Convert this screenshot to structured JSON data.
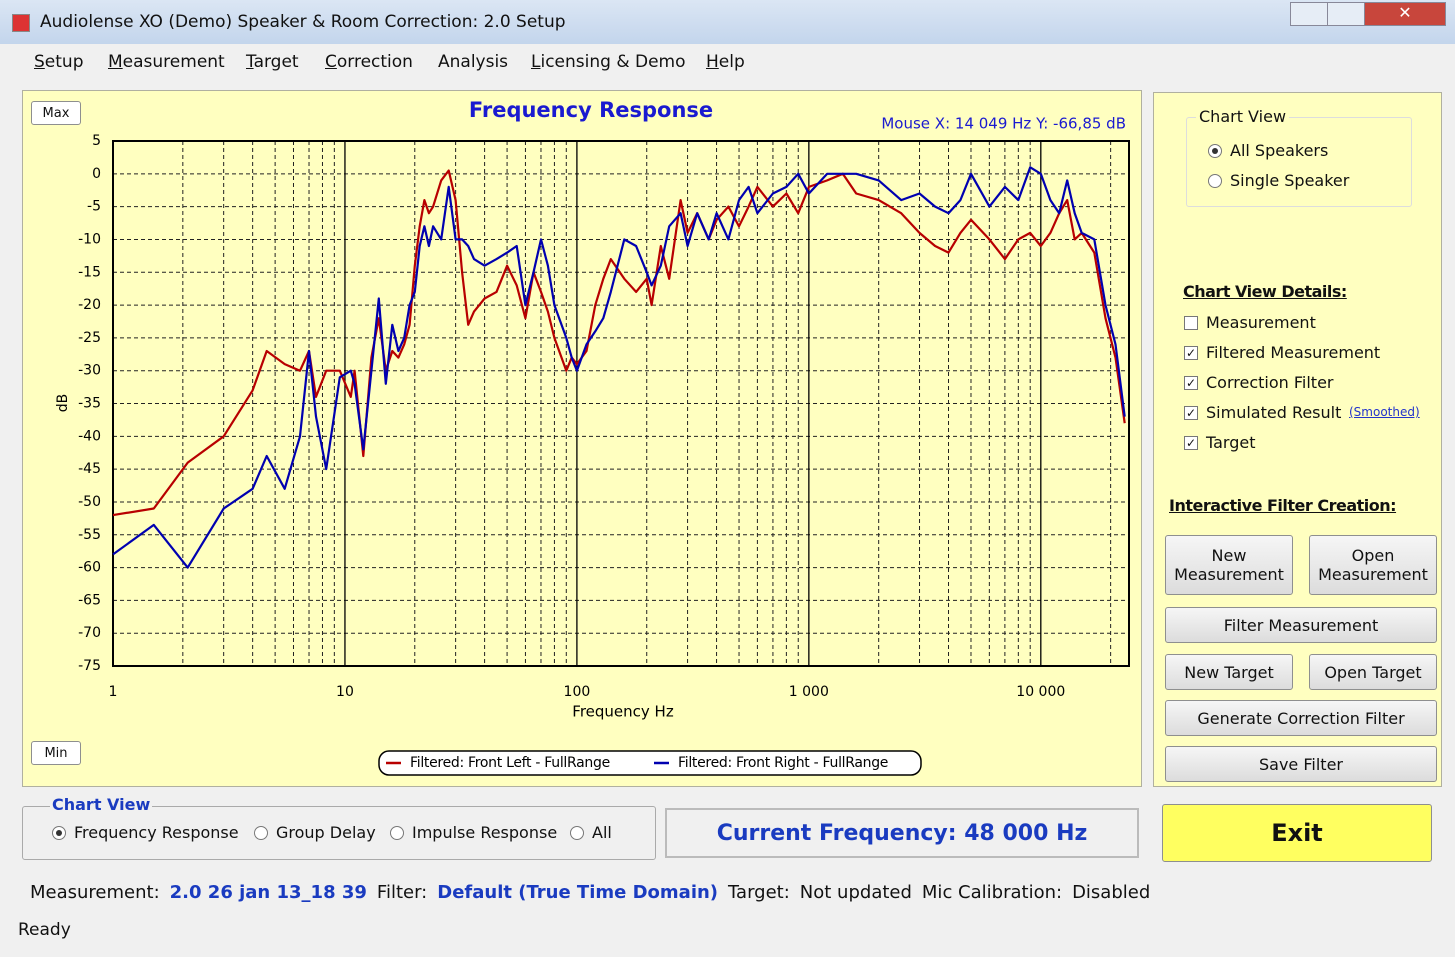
{
  "window": {
    "title": "Audiolense XO (Demo) Speaker & Room Correction: 2.0 Setup"
  },
  "menu": [
    "Setup",
    "Measurement",
    "Target",
    "Correction",
    "Analysis",
    "Licensing & Demo",
    "Help"
  ],
  "chart_buttons": {
    "max": "Max",
    "min": "Min"
  },
  "chart_data": {
    "type": "line",
    "title": "Frequency Response",
    "annotation": "Mouse X: 14 049 Hz  Y: -66,85 dB",
    "xlabel": "Frequency Hz",
    "ylabel": "dB",
    "xscale": "log",
    "grid": true,
    "legend": "bottom",
    "xlim": [
      1,
      24000
    ],
    "ylim": [
      -75,
      5
    ],
    "xticks": [
      1,
      10,
      100,
      {
        "value": 1000,
        "label": "1 000"
      },
      {
        "value": 10000,
        "label": "10 000"
      }
    ],
    "yticks": [
      5,
      0,
      -5,
      -10,
      -15,
      -20,
      -25,
      -30,
      -35,
      -40,
      -45,
      -50,
      -55,
      -60,
      -65,
      -70,
      -75
    ],
    "x": [
      1,
      1.5,
      2.1,
      3,
      4,
      4.6,
      5.5,
      6.4,
      7,
      7.5,
      8.3,
      9.5,
      10.6,
      11,
      12,
      13,
      14,
      15,
      16,
      17,
      18,
      19,
      20,
      21,
      22,
      23,
      24,
      26,
      28,
      30,
      32,
      34,
      36,
      40,
      45,
      50,
      55,
      60,
      65,
      70,
      75,
      80,
      90,
      95,
      100,
      110,
      120,
      130,
      140,
      160,
      180,
      200,
      210,
      230,
      250,
      280,
      300,
      330,
      370,
      400,
      450,
      500,
      550,
      600,
      700,
      800,
      900,
      1000,
      1200,
      1400,
      1600,
      2000,
      2500,
      3000,
      3500,
      4000,
      4500,
      5000,
      6000,
      7000,
      8000,
      9000,
      10000,
      11000,
      12000,
      13000,
      14000,
      15000,
      17000,
      19000,
      21000,
      23000
    ],
    "series": [
      {
        "name": "Filtered: Front Left - FullRange",
        "color": "#b80000",
        "values": [
          -52,
          -51,
          -44,
          -40,
          -33,
          -27,
          -29,
          -30,
          -27,
          -34,
          -30,
          -30,
          -34,
          -30,
          -43,
          -28,
          -22,
          -30,
          -27,
          -28,
          -26,
          -23,
          -14,
          -8,
          -4,
          -6,
          -5,
          -1,
          0.5,
          -4,
          -15,
          -23,
          -21,
          -19,
          -18,
          -14,
          -17,
          -22,
          -15,
          -18,
          -21,
          -25,
          -30,
          -28,
          -29,
          -27,
          -20,
          -16,
          -13,
          -16,
          -18,
          -16,
          -20,
          -11,
          -16,
          -4,
          -9,
          -6,
          -10,
          -7,
          -5,
          -8,
          -5,
          -2,
          -5,
          -3,
          -6,
          -2,
          -1,
          0,
          -3,
          -4,
          -6,
          -9,
          -11,
          -12,
          -9,
          -7,
          -10,
          -13,
          -10,
          -9,
          -11,
          -9,
          -6,
          -4,
          -10,
          -9,
          -12,
          -22,
          -28,
          -38
        ]
      },
      {
        "name": "Filtered: Front Right - FullRange",
        "color": "#0000b0",
        "values": [
          -58,
          -53.5,
          -60,
          -51,
          -48,
          -43,
          -48,
          -40,
          -27,
          -37,
          -45,
          -31,
          -30,
          -32,
          -42,
          -30,
          -19,
          -32,
          -23,
          -27,
          -25,
          -20,
          -18,
          -11,
          -8,
          -11,
          -8,
          -10,
          -2,
          -10,
          -10,
          -11,
          -13,
          -14,
          -13,
          -12,
          -11,
          -20,
          -15,
          -10,
          -14,
          -20,
          -25,
          -28,
          -30,
          -26,
          -24,
          -22,
          -18,
          -10,
          -11,
          -15,
          -17,
          -14,
          -8,
          -6,
          -11,
          -6,
          -10,
          -6,
          -10,
          -4,
          -2,
          -6,
          -3,
          -2,
          0,
          -3,
          0,
          0,
          0,
          -1,
          -4,
          -3,
          -5,
          -6,
          -4,
          0,
          -5,
          -2,
          -4,
          1,
          0,
          -4,
          -6,
          -1,
          -6,
          -9,
          -10,
          -20,
          -26,
          -37
        ]
      }
    ]
  },
  "side_panel": {
    "chart_view": {
      "title": "Chart View",
      "options": [
        "All Speakers",
        "Single Speaker"
      ]
    },
    "details": {
      "title": "Chart View Details:",
      "options": [
        "Measurement",
        "Filtered Measurement",
        "Correction Filter",
        "Simulated Result",
        "Target"
      ],
      "link": "(Smoothed)"
    },
    "filter_creation": {
      "title": "Interactive Filter Creation:",
      "buttons": [
        "New Measurement",
        "Open Measurement",
        "Filter Measurement",
        "New Target",
        "Open Target",
        "Generate Correction Filter",
        "Save Filter"
      ]
    }
  },
  "bottom": {
    "chart_view": {
      "title": "Chart View",
      "options": [
        "Frequency Response",
        "Group Delay",
        "Impulse Response",
        "All"
      ]
    },
    "current_frequency": "Current Frequency: 48 000 Hz",
    "exit": "Exit"
  },
  "info": {
    "measurement_label": "Measurement:",
    "measurement": "2.0 26 jan 13_18 39",
    "filter_label": "Filter:",
    "filter": "Default (True Time Domain)",
    "target_label": "Target:",
    "target": "Not updated",
    "mic_label": "Mic Calibration:",
    "mic": "Disabled"
  },
  "status": "Ready"
}
